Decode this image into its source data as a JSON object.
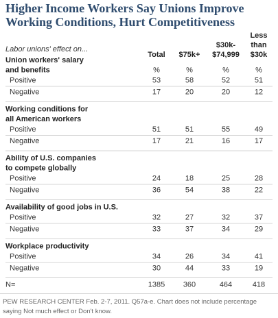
{
  "header": {
    "title": [
      "Higher Income Workers Say Unions Improve",
      "Working Conditions, Hurt Competitiveness"
    ],
    "subtitle": "Labor unions' effect on..."
  },
  "table": {
    "columns": [
      [
        "Total"
      ],
      [
        "$75k+"
      ],
      [
        "$30k-",
        "$74,999"
      ],
      [
        "Less",
        "than",
        "$30k"
      ]
    ],
    "sections": [
      {
        "title": [
          "Union workers' salary",
          "and benefits"
        ],
        "units": [
          "%",
          "%",
          "%",
          "%"
        ],
        "rows": [
          {
            "label": "Positive",
            "values": [
              53,
              58,
              52,
              51
            ]
          },
          {
            "label": "Negative",
            "values": [
              17,
              20,
              20,
              12
            ]
          }
        ]
      },
      {
        "title": [
          "Working conditions for",
          "all American workers"
        ],
        "rows": [
          {
            "label": "Positive",
            "values": [
              51,
              51,
              55,
              49
            ]
          },
          {
            "label": "Negative",
            "values": [
              17,
              21,
              16,
              17
            ]
          }
        ]
      },
      {
        "title": [
          "Ability of U.S. companies",
          "to compete globally"
        ],
        "rows": [
          {
            "label": "Positive",
            "values": [
              24,
              18,
              25,
              28
            ]
          },
          {
            "label": "Negative",
            "values": [
              36,
              54,
              38,
              22
            ]
          }
        ]
      },
      {
        "title": [
          "Availability of good jobs in U.S."
        ],
        "rows": [
          {
            "label": "Positive",
            "values": [
              32,
              27,
              32,
              37
            ]
          },
          {
            "label": "Negative",
            "values": [
              33,
              37,
              34,
              29
            ]
          }
        ]
      },
      {
        "title": [
          "Workplace productivity"
        ],
        "rows": [
          {
            "label": "Positive",
            "values": [
              34,
              26,
              34,
              41
            ]
          },
          {
            "label": "Negative",
            "values": [
              30,
              44,
              33,
              19
            ]
          }
        ]
      }
    ],
    "n_row": {
      "label": "N=",
      "values": [
        1385,
        360,
        464,
        418
      ]
    }
  },
  "footer": {
    "note": [
      "PEW RESEARCH CENTER Feb. 2-7, 2011. Q57a-e. Chart does not include percentage",
      "saying Not much effect or Don't know."
    ]
  }
}
